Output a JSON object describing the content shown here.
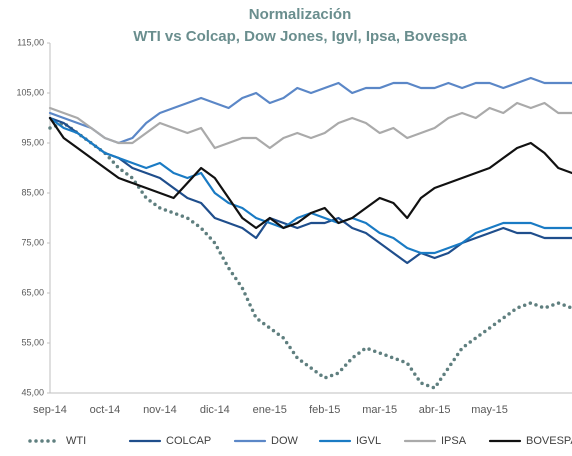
{
  "chart_data": {
    "type": "line",
    "title": "Normalización",
    "subtitle": "WTI  vs Colcap, Dow Jones, Igvl, Ipsa, Bovespa",
    "categories": [
      "sep-14",
      null,
      null,
      null,
      "oct-14",
      null,
      null,
      null,
      "nov-14",
      null,
      null,
      null,
      "dic-14",
      null,
      null,
      null,
      "ene-15",
      null,
      null,
      null,
      "feb-15",
      null,
      null,
      null,
      "mar-15",
      null,
      null,
      null,
      "abr-15",
      null,
      null,
      null,
      "may-15",
      null,
      null,
      null,
      null,
      null,
      null
    ],
    "ylim": [
      45,
      115
    ],
    "yticks": [
      {
        "value": 45,
        "label": "45,00"
      },
      {
        "value": 55,
        "label": "55,00"
      },
      {
        "value": 65,
        "label": "65,00"
      },
      {
        "value": 75,
        "label": "75,00"
      },
      {
        "value": 85,
        "label": "85,00"
      },
      {
        "value": 95,
        "label": "95,00"
      },
      {
        "value": 105,
        "label": "105,00"
      },
      {
        "value": 115,
        "label": "115,00"
      }
    ],
    "series": [
      {
        "name": "WTI",
        "color": "#5f7f7f",
        "style": "dotted",
        "values": [
          98,
          99,
          97,
          95,
          93,
          90,
          88,
          84,
          82,
          81,
          80,
          78,
          75,
          70,
          66,
          60,
          58,
          56,
          52,
          50,
          48,
          49,
          52,
          54,
          53,
          52,
          51,
          47,
          46,
          50,
          54,
          56,
          58,
          60,
          62,
          63,
          62,
          63,
          62
        ]
      },
      {
        "name": "COLCAP",
        "color": "#1f4e8c",
        "style": "solid",
        "values": [
          100,
          99,
          97,
          95,
          93,
          92,
          90,
          89,
          88,
          86,
          84,
          83,
          80,
          79,
          78,
          76,
          80,
          79,
          78,
          79,
          79,
          80,
          78,
          77,
          75,
          73,
          71,
          73,
          72,
          73,
          75,
          76,
          77,
          78,
          77,
          77,
          76,
          76,
          76
        ]
      },
      {
        "name": "DOW",
        "color": "#5b87c7",
        "style": "solid",
        "values": [
          101,
          100,
          99,
          98,
          96,
          95,
          96,
          99,
          101,
          102,
          103,
          104,
          103,
          102,
          104,
          105,
          103,
          104,
          106,
          105,
          106,
          107,
          105,
          106,
          106,
          107,
          107,
          106,
          106,
          107,
          106,
          107,
          107,
          106,
          107,
          108,
          107,
          107,
          107
        ]
      },
      {
        "name": "IGVL",
        "color": "#1a7bc4",
        "style": "solid",
        "values": [
          100,
          98,
          97,
          95,
          93,
          92,
          91,
          90,
          91,
          89,
          88,
          89,
          85,
          83,
          82,
          80,
          79,
          78,
          80,
          81,
          80,
          79,
          80,
          79,
          77,
          76,
          74,
          73,
          73,
          74,
          75,
          77,
          78,
          79,
          79,
          79,
          78,
          78,
          78
        ]
      },
      {
        "name": "IPSA",
        "color": "#aaaaaa",
        "style": "solid",
        "values": [
          102,
          101,
          100,
          98,
          96,
          95,
          95,
          97,
          99,
          98,
          97,
          98,
          94,
          95,
          96,
          96,
          94,
          96,
          97,
          96,
          97,
          99,
          100,
          99,
          97,
          98,
          96,
          97,
          98,
          100,
          101,
          100,
          102,
          101,
          103,
          102,
          103,
          101,
          101
        ]
      },
      {
        "name": "BOVESPA",
        "color": "#111111",
        "style": "solid",
        "values": [
          100,
          96,
          94,
          92,
          90,
          88,
          87,
          86,
          85,
          84,
          87,
          90,
          88,
          84,
          80,
          78,
          80,
          78,
          79,
          81,
          82,
          79,
          80,
          82,
          84,
          83,
          80,
          84,
          86,
          87,
          88,
          89,
          90,
          92,
          94,
          95,
          93,
          90,
          89
        ]
      }
    ]
  }
}
